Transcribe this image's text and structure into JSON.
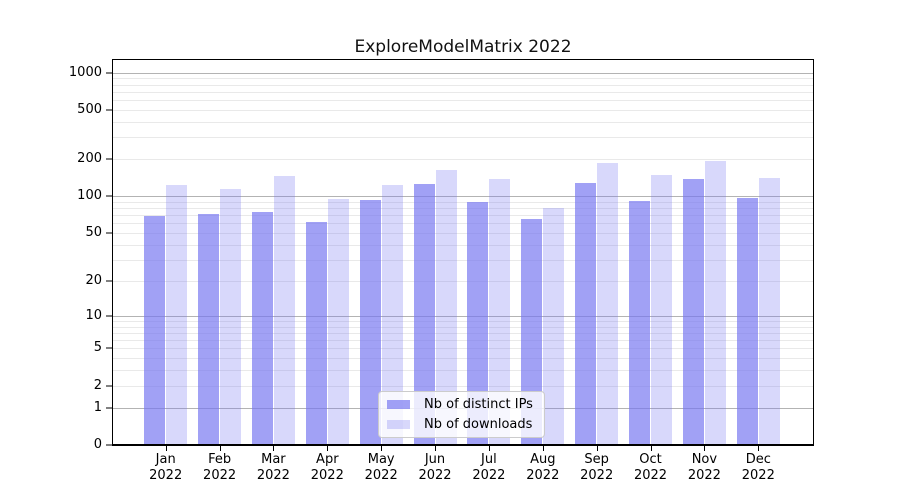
{
  "title": "ExploreModelMatrix 2022",
  "colors": {
    "series": [
      "rgba(116,116,240,0.68)",
      "rgba(116,116,240,0.28)"
    ],
    "grid_major": "#b3b3b3",
    "grid_minor": "#e9e9e9",
    "axis": "#000000"
  },
  "legend": {
    "items": [
      {
        "key": "ips",
        "label": "Nb of distinct IPs"
      },
      {
        "key": "downloads",
        "label": "Nb of downloads"
      }
    ]
  },
  "axes": {
    "x_months": [
      "Jan",
      "Feb",
      "Mar",
      "Apr",
      "May",
      "Jun",
      "Jul",
      "Aug",
      "Sep",
      "Oct",
      "Nov",
      "Dec"
    ],
    "x_year": "2022",
    "y_ticks": [
      {
        "value": 1000,
        "label": "1000"
      },
      {
        "value": 500,
        "label": "500"
      },
      {
        "value": 200,
        "label": "200"
      },
      {
        "value": 100,
        "label": "100"
      },
      {
        "value": 50,
        "label": "50"
      },
      {
        "value": 20,
        "label": "20"
      },
      {
        "value": 10,
        "label": "10"
      },
      {
        "value": 5,
        "label": "5"
      },
      {
        "value": 2,
        "label": "2"
      },
      {
        "value": 1,
        "label": "1"
      },
      {
        "value": 0,
        "label": "0"
      }
    ]
  },
  "chart_data": {
    "type": "bar",
    "title": "ExploreModelMatrix 2022",
    "categories": [
      "Jan 2022",
      "Feb 2022",
      "Mar 2022",
      "Apr 2022",
      "May 2022",
      "Jun 2022",
      "Jul 2022",
      "Aug 2022",
      "Sep 2022",
      "Oct 2022",
      "Nov 2022",
      "Dec 2022"
    ],
    "series": [
      {
        "key": "ips",
        "name": "Nb of distinct IPs",
        "values": [
          69,
          71,
          75,
          61,
          93,
          126,
          89,
          65,
          128,
          92,
          139,
          97
        ]
      },
      {
        "key": "downloads",
        "name": "Nb of downloads",
        "values": [
          124,
          114,
          146,
          94,
          124,
          164,
          138,
          80,
          187,
          149,
          193,
          140
        ]
      }
    ],
    "xlabel": "",
    "ylabel": "",
    "yscale": "symlog-log1p",
    "ylim": [
      0,
      1260
    ],
    "y_ticks": [
      0,
      1,
      2,
      5,
      10,
      20,
      50,
      100,
      200,
      500,
      1000
    ],
    "grid": true,
    "legend_position": "lower-center-inside"
  }
}
